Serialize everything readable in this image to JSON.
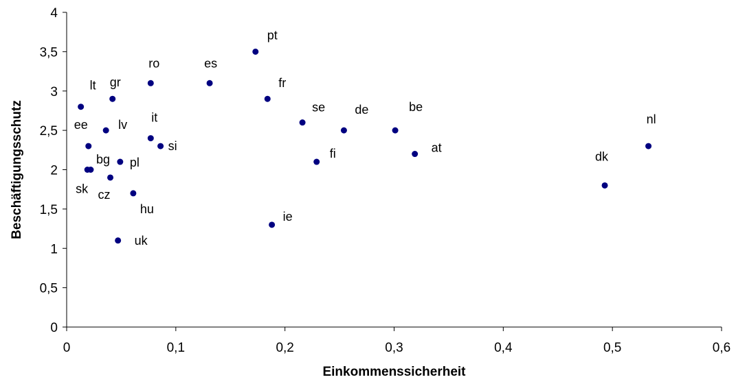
{
  "chart_data": {
    "type": "scatter",
    "title": "",
    "xlabel": "Einkommenssicherheit",
    "ylabel": "Beschäftigungsschutz",
    "xlim": [
      0,
      0.6
    ],
    "ylim": [
      0,
      4
    ],
    "x_ticks": [
      "0",
      "0,1",
      "0,2",
      "0,3",
      "0,4",
      "0,5",
      "0,6"
    ],
    "y_ticks": [
      "0",
      "0,5",
      "1",
      "1,5",
      "2",
      "2,5",
      "3",
      "3,5",
      "4"
    ],
    "grid": false,
    "marker_color": "#000080",
    "points": [
      {
        "label": "pt",
        "x": 0.173,
        "y": 3.5
      },
      {
        "label": "ro",
        "x": 0.077,
        "y": 3.1
      },
      {
        "label": "es",
        "x": 0.131,
        "y": 3.1
      },
      {
        "label": "gr",
        "x": 0.042,
        "y": 2.9
      },
      {
        "label": "fr",
        "x": 0.184,
        "y": 2.9
      },
      {
        "label": "lt",
        "x": 0.013,
        "y": 2.8
      },
      {
        "label": "se",
        "x": 0.216,
        "y": 2.6
      },
      {
        "label": "lv",
        "x": 0.036,
        "y": 2.5
      },
      {
        "label": "de",
        "x": 0.254,
        "y": 2.5
      },
      {
        "label": "be",
        "x": 0.301,
        "y": 2.5
      },
      {
        "label": "it",
        "x": 0.077,
        "y": 2.4
      },
      {
        "label": "ee",
        "x": 0.02,
        "y": 2.3
      },
      {
        "label": "si",
        "x": 0.086,
        "y": 2.3
      },
      {
        "label": "nl",
        "x": 0.533,
        "y": 2.3
      },
      {
        "label": "at",
        "x": 0.319,
        "y": 2.2
      },
      {
        "label": "pl",
        "x": 0.049,
        "y": 2.1
      },
      {
        "label": "fi",
        "x": 0.229,
        "y": 2.1
      },
      {
        "label": "sk",
        "x": 0.019,
        "y": 2.0
      },
      {
        "label": "bg",
        "x": 0.022,
        "y": 2.0
      },
      {
        "label": "cz",
        "x": 0.04,
        "y": 1.9
      },
      {
        "label": "dk",
        "x": 0.493,
        "y": 1.8
      },
      {
        "label": "hu",
        "x": 0.061,
        "y": 1.7
      },
      {
        "label": "ie",
        "x": 0.188,
        "y": 1.3
      },
      {
        "label": "uk",
        "x": 0.047,
        "y": 1.1
      }
    ]
  }
}
